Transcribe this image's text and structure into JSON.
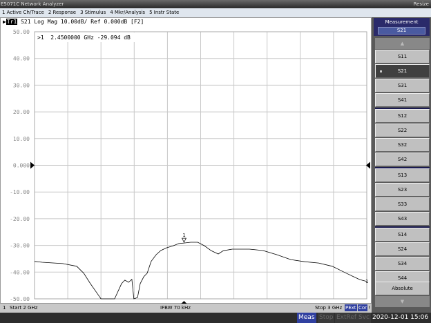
{
  "window": {
    "title": "E5071C Network Analyzer",
    "resize": "Resize"
  },
  "menu": [
    "1 Active Ch/Trace",
    "2 Response",
    "3 Stimulus",
    "4 Mkr/Analysis",
    "5 Instr State"
  ],
  "trace": {
    "badge": "Tr1",
    "header": " S21 Log Mag 10.00dB/ Ref 0.000dB [F2]",
    "color": "#000000"
  },
  "marker": {
    "readout": ">1  2.4500000 GHz -29.094 dB",
    "label": "1",
    "end_label": "1",
    "freq_ghz": 2.45,
    "value_db": -29.094
  },
  "chart_data": {
    "type": "line",
    "xlim": [
      2.0,
      3.0
    ],
    "ylim": [
      -50,
      50
    ],
    "grid": true,
    "yticks": [
      "50.00",
      "40.00",
      "30.00",
      "20.00",
      "10.00",
      "0.000",
      "-10.00",
      "-20.00",
      "-30.00",
      "-40.00",
      "-50.00"
    ],
    "x": [
      2.0,
      2.023,
      2.085,
      2.127,
      2.148,
      2.168,
      2.189,
      2.2,
      2.241,
      2.252,
      2.262,
      2.272,
      2.283,
      2.293,
      2.299,
      2.31,
      2.318,
      2.329,
      2.339,
      2.351,
      2.366,
      2.38,
      2.397,
      2.418,
      2.434,
      2.45,
      2.47,
      2.491,
      2.511,
      2.532,
      2.553,
      2.568,
      2.595,
      2.647,
      2.688,
      2.73,
      2.771,
      2.813,
      2.855,
      2.896,
      2.938,
      2.979,
      3.0
    ],
    "y": [
      -36.0,
      -36.3,
      -36.8,
      -37.8,
      -40.4,
      -44.3,
      -48.0,
      -50.0,
      -50.0,
      -47.0,
      -44.3,
      -43.0,
      -43.8,
      -42.7,
      -50.0,
      -49.5,
      -44.3,
      -41.7,
      -40.4,
      -36.0,
      -33.5,
      -31.9,
      -30.9,
      -30.1,
      -29.3,
      -29.1,
      -28.8,
      -28.8,
      -30.1,
      -32.0,
      -33.2,
      -32.0,
      -31.4,
      -31.4,
      -31.9,
      -33.5,
      -35.3,
      -36.1,
      -36.6,
      -37.8,
      -40.4,
      -42.8,
      -43.5
    ]
  },
  "status": {
    "channel": "1",
    "start": "Start 2 GHz",
    "ifbw": "IFBW 70 kHz",
    "stop": "Stop 3 GHz",
    "pext": "PExt",
    "cor": "Cor",
    "end": "!"
  },
  "bottom": {
    "meas": "Meas",
    "stop": "Stop",
    "extref": "ExtRef",
    "svc": "Svc",
    "datetime": "2020-12-01 15:06"
  },
  "softkeys": {
    "header": "Measurement",
    "value": "S21",
    "groups": [
      [
        "S11",
        "S21",
        "S31",
        "S41"
      ],
      [
        "S12",
        "S22",
        "S32",
        "S42"
      ],
      [
        "S13",
        "S23",
        "S33",
        "S43"
      ],
      [
        "S14",
        "S24",
        "S34",
        "S44"
      ]
    ],
    "selected": "S21",
    "absolute": "Absolute"
  }
}
